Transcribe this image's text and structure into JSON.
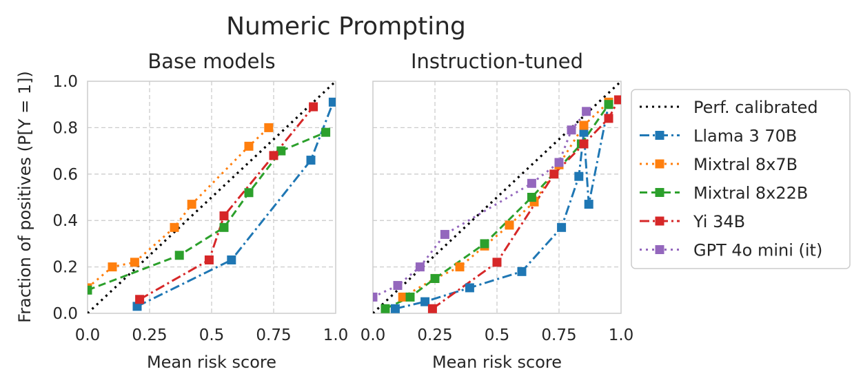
{
  "chart_data": {
    "title": "Numeric Prompting",
    "ylabel": "Fraction of positives (P[Y = 1])",
    "legend_position": "right",
    "grid": true,
    "series_styles": [
      {
        "name": "Perf. calibrated",
        "color": "#000000",
        "dash": "dotted",
        "marker": "none"
      },
      {
        "name": "Llama 3 70B",
        "color": "#1f77b4",
        "dash": "dashdot",
        "marker": "square"
      },
      {
        "name": "Mixtral 8x7B",
        "color": "#ff7f0e",
        "dash": "dotted",
        "marker": "square"
      },
      {
        "name": "Mixtral 8x22B",
        "color": "#2ca02c",
        "dash": "dashed",
        "marker": "square"
      },
      {
        "name": "Yi 34B",
        "color": "#d62728",
        "dash": "dashdot",
        "marker": "square"
      },
      {
        "name": "GPT 4o mini (it)",
        "color": "#9467bd",
        "dash": "dotted",
        "marker": "square"
      }
    ],
    "panels": [
      {
        "type": "line",
        "title": "Base models",
        "xlabel": "Mean risk score",
        "xlim": [
          0,
          1
        ],
        "ylim": [
          0,
          1
        ],
        "xticks": [
          "0.0",
          "0.25",
          "0.5",
          "0.75",
          "1.0"
        ],
        "yticks": [
          "0.0",
          "0.2",
          "0.4",
          "0.6",
          "0.8",
          "1.0"
        ],
        "series": [
          {
            "name": "Perf. calibrated",
            "points": [
              [
                0,
                0
              ],
              [
                1,
                1
              ]
            ]
          },
          {
            "name": "Llama 3 70B",
            "points": [
              [
                0.2,
                0.03
              ],
              [
                0.58,
                0.23
              ],
              [
                0.9,
                0.66
              ],
              [
                0.99,
                0.91
              ]
            ]
          },
          {
            "name": "Mixtral 8x7B",
            "points": [
              [
                0.0,
                0.11
              ],
              [
                0.1,
                0.2
              ],
              [
                0.19,
                0.22
              ],
              [
                0.35,
                0.37
              ],
              [
                0.42,
                0.47
              ],
              [
                0.65,
                0.72
              ],
              [
                0.73,
                0.8
              ]
            ]
          },
          {
            "name": "Mixtral 8x22B",
            "points": [
              [
                0.0,
                0.1
              ],
              [
                0.37,
                0.25
              ],
              [
                0.55,
                0.37
              ],
              [
                0.65,
                0.52
              ],
              [
                0.78,
                0.7
              ],
              [
                0.96,
                0.78
              ]
            ]
          },
          {
            "name": "Yi 34B",
            "points": [
              [
                0.21,
                0.06
              ],
              [
                0.49,
                0.23
              ],
              [
                0.55,
                0.42
              ],
              [
                0.75,
                0.68
              ],
              [
                0.91,
                0.89
              ]
            ]
          }
        ]
      },
      {
        "type": "line",
        "title": "Instruction-tuned",
        "xlabel": "Mean risk score",
        "xlim": [
          0,
          1
        ],
        "ylim": [
          0,
          1
        ],
        "xticks": [
          "0.0",
          "0.25",
          "0.5",
          "0.75",
          "1.0"
        ],
        "series": [
          {
            "name": "Perf. calibrated",
            "points": [
              [
                0,
                0
              ],
              [
                1,
                1
              ]
            ]
          },
          {
            "name": "Llama 3 70B",
            "points": [
              [
                0.09,
                0.02
              ],
              [
                0.21,
                0.05
              ],
              [
                0.39,
                0.11
              ],
              [
                0.6,
                0.18
              ],
              [
                0.76,
                0.37
              ],
              [
                0.83,
                0.59
              ],
              [
                0.85,
                0.78
              ],
              [
                0.87,
                0.47
              ],
              [
                0.95,
                0.9
              ]
            ]
          },
          {
            "name": "Mixtral 8x7B",
            "points": [
              [
                0.12,
                0.07
              ],
              [
                0.25,
                0.15
              ],
              [
                0.35,
                0.2
              ],
              [
                0.45,
                0.29
              ],
              [
                0.55,
                0.38
              ],
              [
                0.65,
                0.48
              ],
              [
                0.75,
                0.64
              ],
              [
                0.85,
                0.81
              ],
              [
                0.95,
                0.91
              ]
            ]
          },
          {
            "name": "Mixtral 8x22B",
            "points": [
              [
                0.05,
                0.02
              ],
              [
                0.15,
                0.07
              ],
              [
                0.25,
                0.15
              ],
              [
                0.45,
                0.3
              ],
              [
                0.64,
                0.5
              ],
              [
                0.84,
                0.73
              ],
              [
                0.95,
                0.9
              ]
            ]
          },
          {
            "name": "Yi 34B",
            "points": [
              [
                0.24,
                0.02
              ],
              [
                0.5,
                0.22
              ],
              [
                0.73,
                0.6
              ],
              [
                0.85,
                0.73
              ],
              [
                0.95,
                0.84
              ],
              [
                0.99,
                0.92
              ]
            ]
          },
          {
            "name": "GPT 4o mini (it)",
            "points": [
              [
                0.0,
                0.07
              ],
              [
                0.1,
                0.12
              ],
              [
                0.19,
                0.2
              ],
              [
                0.29,
                0.34
              ],
              [
                0.64,
                0.56
              ],
              [
                0.75,
                0.65
              ],
              [
                0.8,
                0.79
              ],
              [
                0.86,
                0.87
              ]
            ]
          }
        ]
      }
    ]
  }
}
